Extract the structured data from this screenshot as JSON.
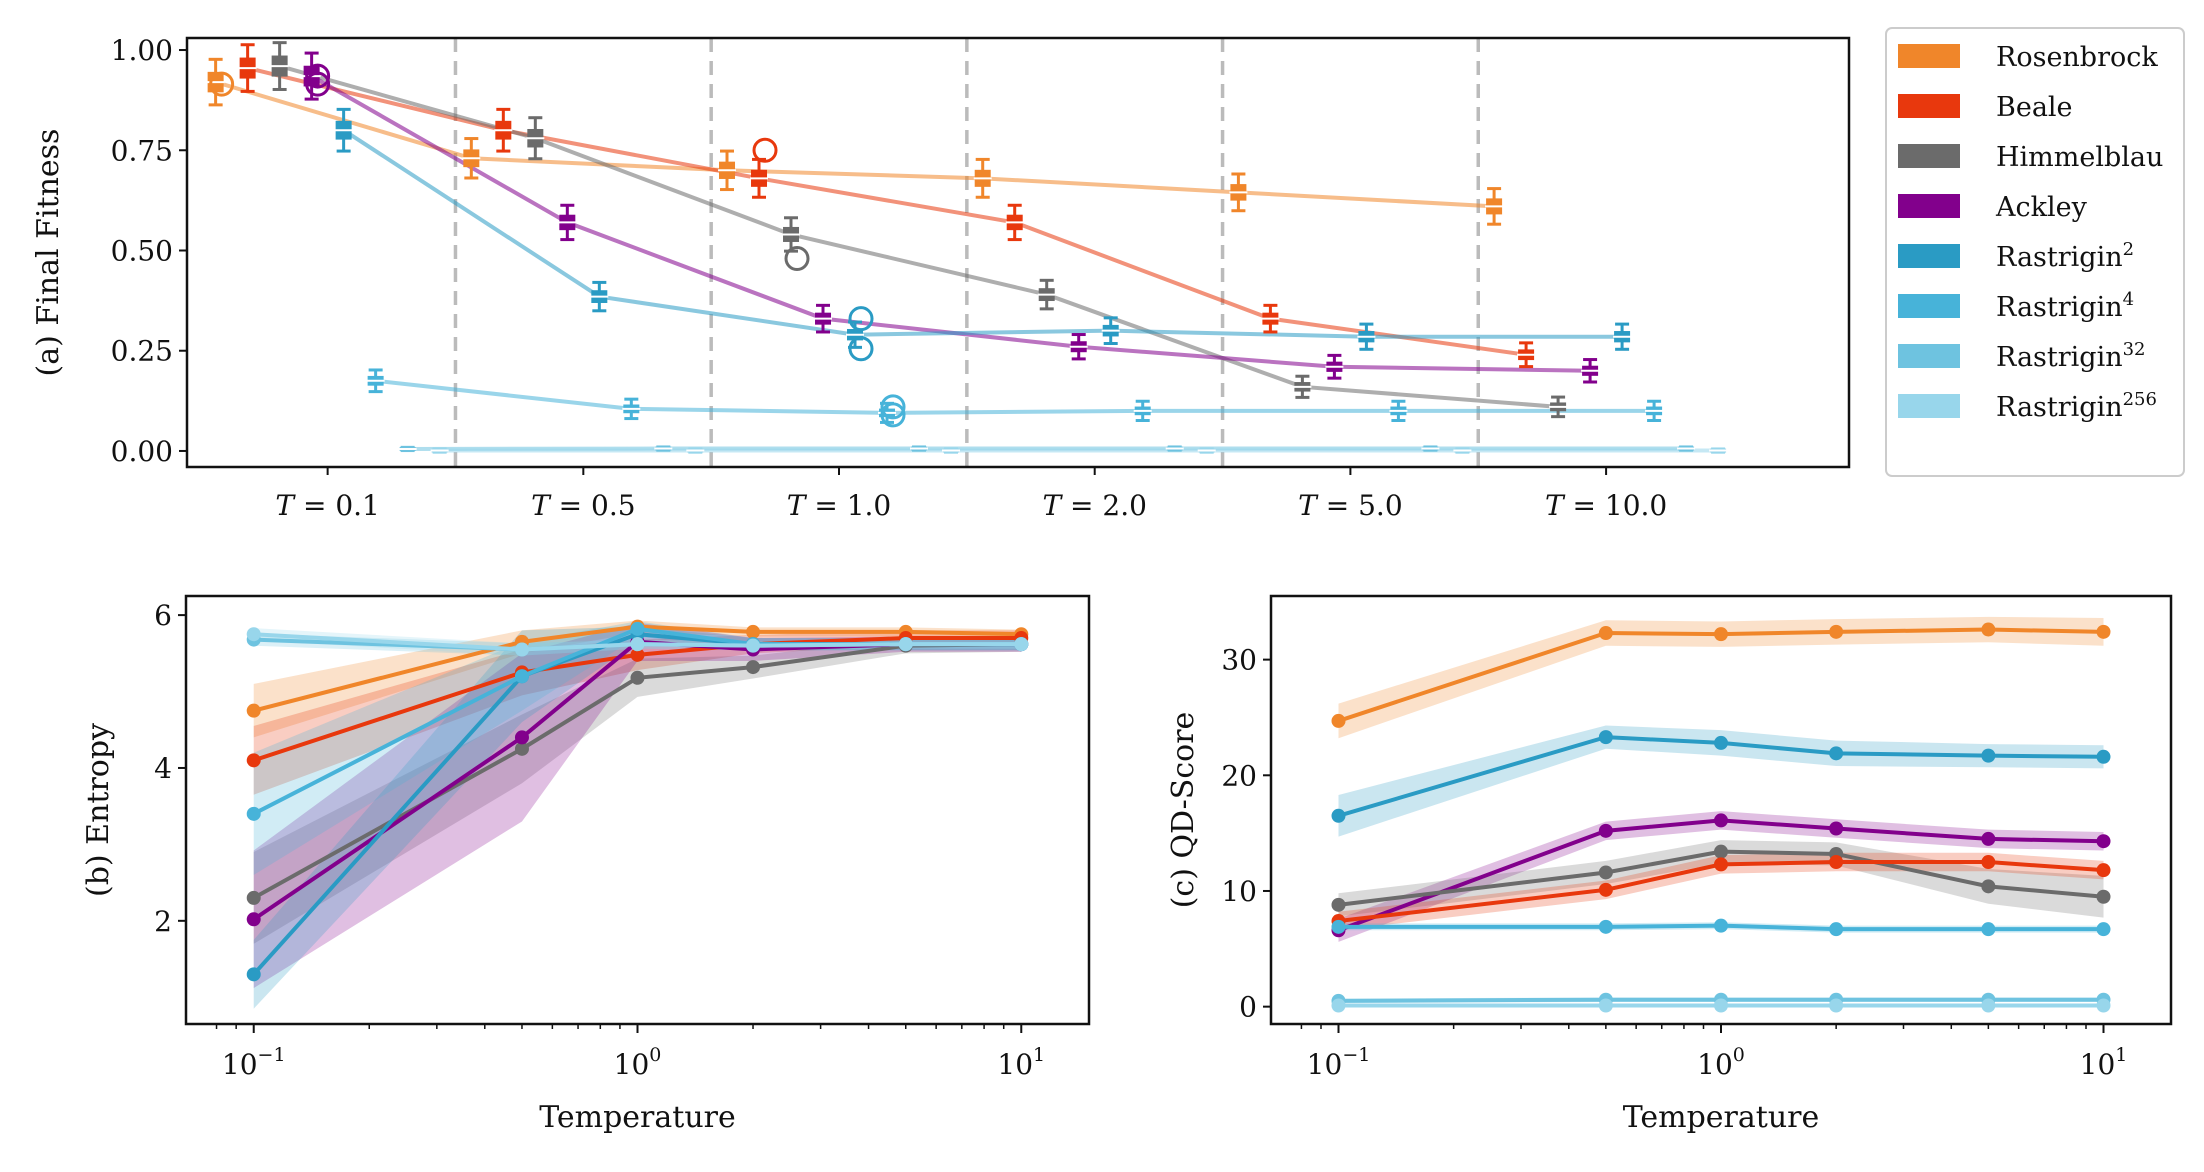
{
  "colors": {
    "Rosenbrock": "#F0862A",
    "Beale": "#E8380D",
    "Himmelblau": "#6B6B6B",
    "Ackley": "#82008C",
    "Rastrigin2": "#2A9BC4",
    "Rastrigin4": "#47B3D9",
    "Rastrigin32": "#6EC3E0",
    "Rastrigin256": "#98D6EB"
  },
  "legend": [
    {
      "key": "Rosenbrock",
      "base": "Rosenbrock",
      "sup": ""
    },
    {
      "key": "Beale",
      "base": "Beale",
      "sup": ""
    },
    {
      "key": "Himmelblau",
      "base": "Himmelblau",
      "sup": ""
    },
    {
      "key": "Ackley",
      "base": "Ackley",
      "sup": ""
    },
    {
      "key": "Rastrigin2",
      "base": "Rastrigin",
      "sup": "2"
    },
    {
      "key": "Rastrigin4",
      "base": "Rastrigin",
      "sup": "4"
    },
    {
      "key": "Rastrigin32",
      "base": "Rastrigin",
      "sup": "32"
    },
    {
      "key": "Rastrigin256",
      "base": "Rastrigin",
      "sup": "256"
    }
  ],
  "chart_data": [
    {
      "type": "box",
      "panel": "a",
      "ylabel": "(a) Final Fitness",
      "ylim": [
        -0.04,
        1.03
      ],
      "yticks": [
        "0.00",
        "0.25",
        "0.50",
        "0.75",
        "1.00"
      ],
      "ytick_values": [
        0,
        0.25,
        0.5,
        0.75,
        1.0
      ],
      "categories": [
        "T = 0.1",
        "T = 0.5",
        "T = 1.0",
        "T = 2.0",
        "T = 5.0",
        "T = 10.0"
      ],
      "group_separators": "dashed",
      "series": [
        {
          "key": "Rosenbrock",
          "values": [
            0.92,
            0.73,
            0.7,
            0.68,
            0.645,
            0.61
          ],
          "outliers": [
            [
              0,
              0.915
            ]
          ]
        },
        {
          "key": "Beale",
          "values": [
            0.955,
            0.8,
            0.68,
            0.57,
            0.33,
            0.24
          ],
          "outliers": [
            [
              2,
              0.75
            ]
          ]
        },
        {
          "key": "Himmelblau",
          "values": [
            0.96,
            0.78,
            0.54,
            0.39,
            0.16,
            0.11
          ],
          "outliers": [
            [
              2,
              0.48
            ]
          ]
        },
        {
          "key": "Ackley",
          "values": [
            0.935,
            0.57,
            0.33,
            0.26,
            0.21,
            0.2
          ],
          "outliers": [
            [
              0,
              0.915
            ],
            [
              0,
              0.935
            ]
          ]
        },
        {
          "key": "Rastrigin2",
          "values": [
            0.8,
            0.385,
            0.29,
            0.3,
            0.285,
            0.285
          ],
          "outliers": [
            [
              2,
              0.33
            ],
            [
              2,
              0.255
            ]
          ]
        },
        {
          "key": "Rastrigin4",
          "values": [
            0.175,
            0.105,
            0.095,
            0.1,
            0.1,
            0.1
          ],
          "outliers": [
            [
              2,
              0.11
            ],
            [
              2,
              0.09
            ]
          ]
        },
        {
          "key": "Rastrigin32",
          "values": [
            0.005,
            0.006,
            0.006,
            0.006,
            0.006,
            0.006
          ]
        },
        {
          "key": "Rastrigin256",
          "values": [
            0.001,
            0.001,
            0.001,
            0.001,
            0.001,
            0.001
          ]
        }
      ]
    },
    {
      "type": "line",
      "panel": "b",
      "xlabel": "Temperature",
      "ylabel": "(b) Entropy",
      "xscale": "log",
      "x": [
        0.1,
        0.5,
        1.0,
        2.0,
        5.0,
        10.0
      ],
      "ylim": [
        0.65,
        6.25
      ],
      "yticks": [
        2,
        4,
        6
      ],
      "series": [
        {
          "key": "Rosenbrock",
          "values": [
            4.75,
            5.65,
            5.85,
            5.78,
            5.78,
            5.75
          ],
          "spread": [
            0.35,
            0.15,
            0.08,
            0.06,
            0.06,
            0.06
          ]
        },
        {
          "key": "Beale",
          "values": [
            4.1,
            5.25,
            5.48,
            5.62,
            5.7,
            5.7
          ],
          "spread": [
            0.45,
            0.3,
            0.2,
            0.12,
            0.1,
            0.1
          ]
        },
        {
          "key": "Himmelblau",
          "values": [
            2.3,
            4.25,
            5.18,
            5.32,
            5.6,
            5.62
          ],
          "spread": [
            0.6,
            0.45,
            0.25,
            0.15,
            0.1,
            0.1
          ]
        },
        {
          "key": "Ackley",
          "values": [
            2.02,
            4.4,
            5.65,
            5.55,
            5.62,
            5.62
          ],
          "spread": [
            0.9,
            1.1,
            0.25,
            0.15,
            0.1,
            0.1
          ]
        },
        {
          "key": "Rastrigin2",
          "values": [
            1.3,
            5.2,
            5.75,
            5.62,
            5.62,
            5.62
          ],
          "spread": [
            0.45,
            0.6,
            0.1,
            0.08,
            0.08,
            0.08
          ]
        },
        {
          "key": "Rastrigin4",
          "values": [
            3.4,
            5.2,
            5.82,
            5.62,
            5.62,
            5.62
          ],
          "spread": [
            0.8,
            0.45,
            0.1,
            0.08,
            0.08,
            0.08
          ]
        },
        {
          "key": "Rastrigin32",
          "values": [
            5.68,
            5.55,
            5.62,
            5.6,
            5.62,
            5.62
          ],
          "spread": [
            0.08,
            0.08,
            0.06,
            0.06,
            0.06,
            0.06
          ]
        },
        {
          "key": "Rastrigin256",
          "values": [
            5.75,
            5.55,
            5.62,
            5.6,
            5.62,
            5.62
          ],
          "spread": [
            0.08,
            0.08,
            0.06,
            0.06,
            0.06,
            0.06
          ]
        }
      ]
    },
    {
      "type": "line",
      "panel": "c",
      "xlabel": "Temperature",
      "ylabel": "(c) QD-Score",
      "xscale": "log",
      "x": [
        0.1,
        0.5,
        1.0,
        2.0,
        5.0,
        10.0
      ],
      "ylim": [
        -1.5,
        35.5
      ],
      "yticks": [
        0,
        10,
        20,
        30
      ],
      "series": [
        {
          "key": "Rosenbrock",
          "values": [
            24.7,
            32.3,
            32.2,
            32.4,
            32.6,
            32.4
          ],
          "spread": [
            1.5,
            1.1,
            1.1,
            1.1,
            1.1,
            1.2
          ]
        },
        {
          "key": "Rastrigin2",
          "values": [
            16.5,
            23.3,
            22.8,
            21.9,
            21.7,
            21.6
          ],
          "spread": [
            1.8,
            1.0,
            1.1,
            1.1,
            1.0,
            1.0
          ]
        },
        {
          "key": "Ackley",
          "values": [
            6.6,
            15.2,
            16.1,
            15.4,
            14.5,
            14.3
          ],
          "spread": [
            1.0,
            0.8,
            0.8,
            0.8,
            0.8,
            0.8
          ]
        },
        {
          "key": "Himmelblau",
          "values": [
            8.8,
            11.6,
            13.4,
            13.2,
            10.4,
            9.5
          ],
          "spread": [
            1.0,
            1.0,
            1.0,
            1.0,
            1.5,
            1.8
          ]
        },
        {
          "key": "Beale",
          "values": [
            7.4,
            10.1,
            12.3,
            12.5,
            12.5,
            11.8
          ],
          "spread": [
            0.8,
            0.8,
            0.8,
            0.8,
            0.8,
            0.8
          ]
        },
        {
          "key": "Rastrigin4",
          "values": [
            6.9,
            6.9,
            7.0,
            6.7,
            6.7,
            6.7
          ],
          "spread": [
            0.3,
            0.3,
            0.3,
            0.3,
            0.3,
            0.3
          ]
        },
        {
          "key": "Rastrigin32",
          "values": [
            0.5,
            0.6,
            0.6,
            0.6,
            0.6,
            0.6
          ],
          "spread": [
            0.2,
            0.2,
            0.2,
            0.2,
            0.2,
            0.2
          ]
        },
        {
          "key": "Rastrigin256",
          "values": [
            0.1,
            0.1,
            0.1,
            0.1,
            0.1,
            0.1
          ],
          "spread": [
            0.1,
            0.1,
            0.1,
            0.1,
            0.1,
            0.1
          ]
        }
      ]
    }
  ]
}
